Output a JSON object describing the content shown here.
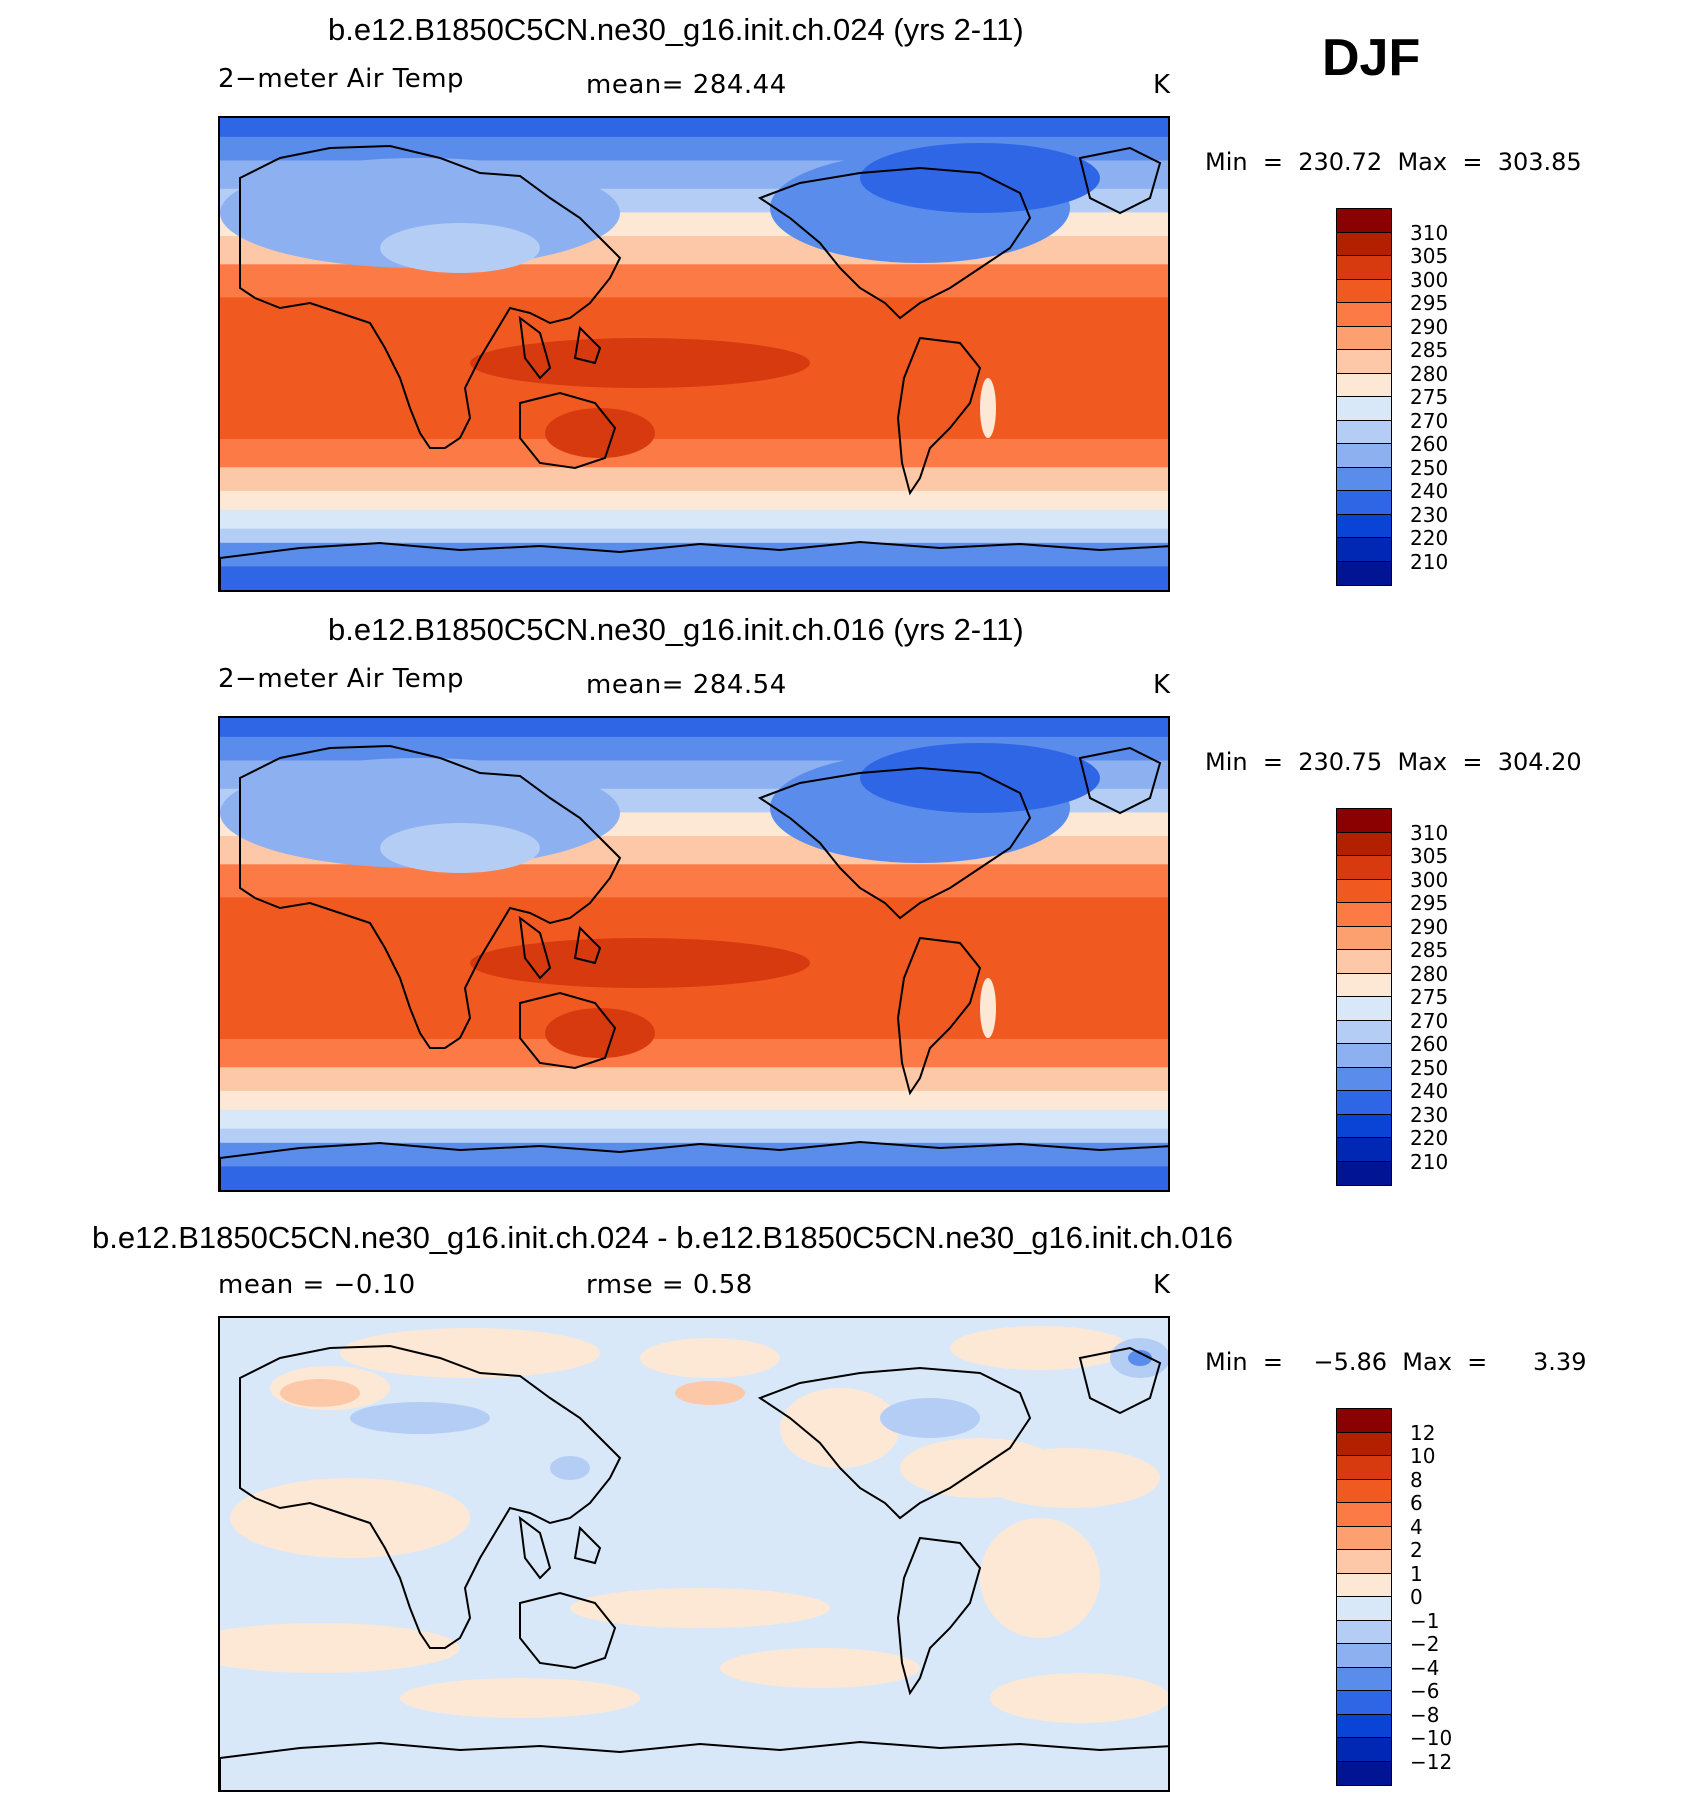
{
  "season": "DJF",
  "panels": [
    {
      "title": "b.e12.B1850C5CN.ne30_g16.init.ch.024 (yrs 2-11)",
      "left_label": "2−meter Air Temp",
      "center_label": "mean=  284.44",
      "units": "K",
      "minmax": "Min  =  230.72  Max  =  303.85",
      "kind": "abs"
    },
    {
      "title": "b.e12.B1850C5CN.ne30_g16.init.ch.016 (yrs 2-11)",
      "left_label": "2−meter Air Temp",
      "center_label": "mean=  284.54",
      "units": "K",
      "minmax": "Min  =  230.75  Max  =  304.20",
      "kind": "abs"
    },
    {
      "title": "b.e12.B1850C5CN.ne30_g16.init.ch.024 - b.e12.B1850C5CN.ne30_g16.init.ch.016",
      "left_label": "mean  =    −0.10",
      "center_label": "rmse  =     0.58",
      "units": "K",
      "minmax": "Min  =    −5.86  Max  =      3.39",
      "kind": "diff"
    }
  ],
  "colorbars": {
    "abs": {
      "labels": [
        "310",
        "305",
        "300",
        "295",
        "290",
        "285",
        "280",
        "275",
        "270",
        "260",
        "250",
        "240",
        "230",
        "220",
        "210"
      ],
      "colors": [
        "#8b0000",
        "#b22000",
        "#d83a10",
        "#f05a20",
        "#fc7a45",
        "#fda070",
        "#fdc8a8",
        "#fde8d6",
        "#d9e8f8",
        "#b4cdf4",
        "#8cb0f0",
        "#5a8cec",
        "#2f66e6",
        "#0a44d6",
        "#0028b4",
        "#001494"
      ]
    },
    "diff": {
      "labels": [
        "12",
        "10",
        "8",
        "6",
        "4",
        "2",
        "1",
        "0",
        "−1",
        "−2",
        "−4",
        "−6",
        "−8",
        "−10",
        "−12"
      ],
      "colors": [
        "#8b0000",
        "#b22000",
        "#d83a10",
        "#f05a20",
        "#fc7a45",
        "#fda070",
        "#fdc8a8",
        "#fde8d6",
        "#d9e8f8",
        "#b4cdf4",
        "#8cb0f0",
        "#5a8cec",
        "#2f66e6",
        "#0a44d6",
        "#0028b4",
        "#001494"
      ]
    }
  }
}
